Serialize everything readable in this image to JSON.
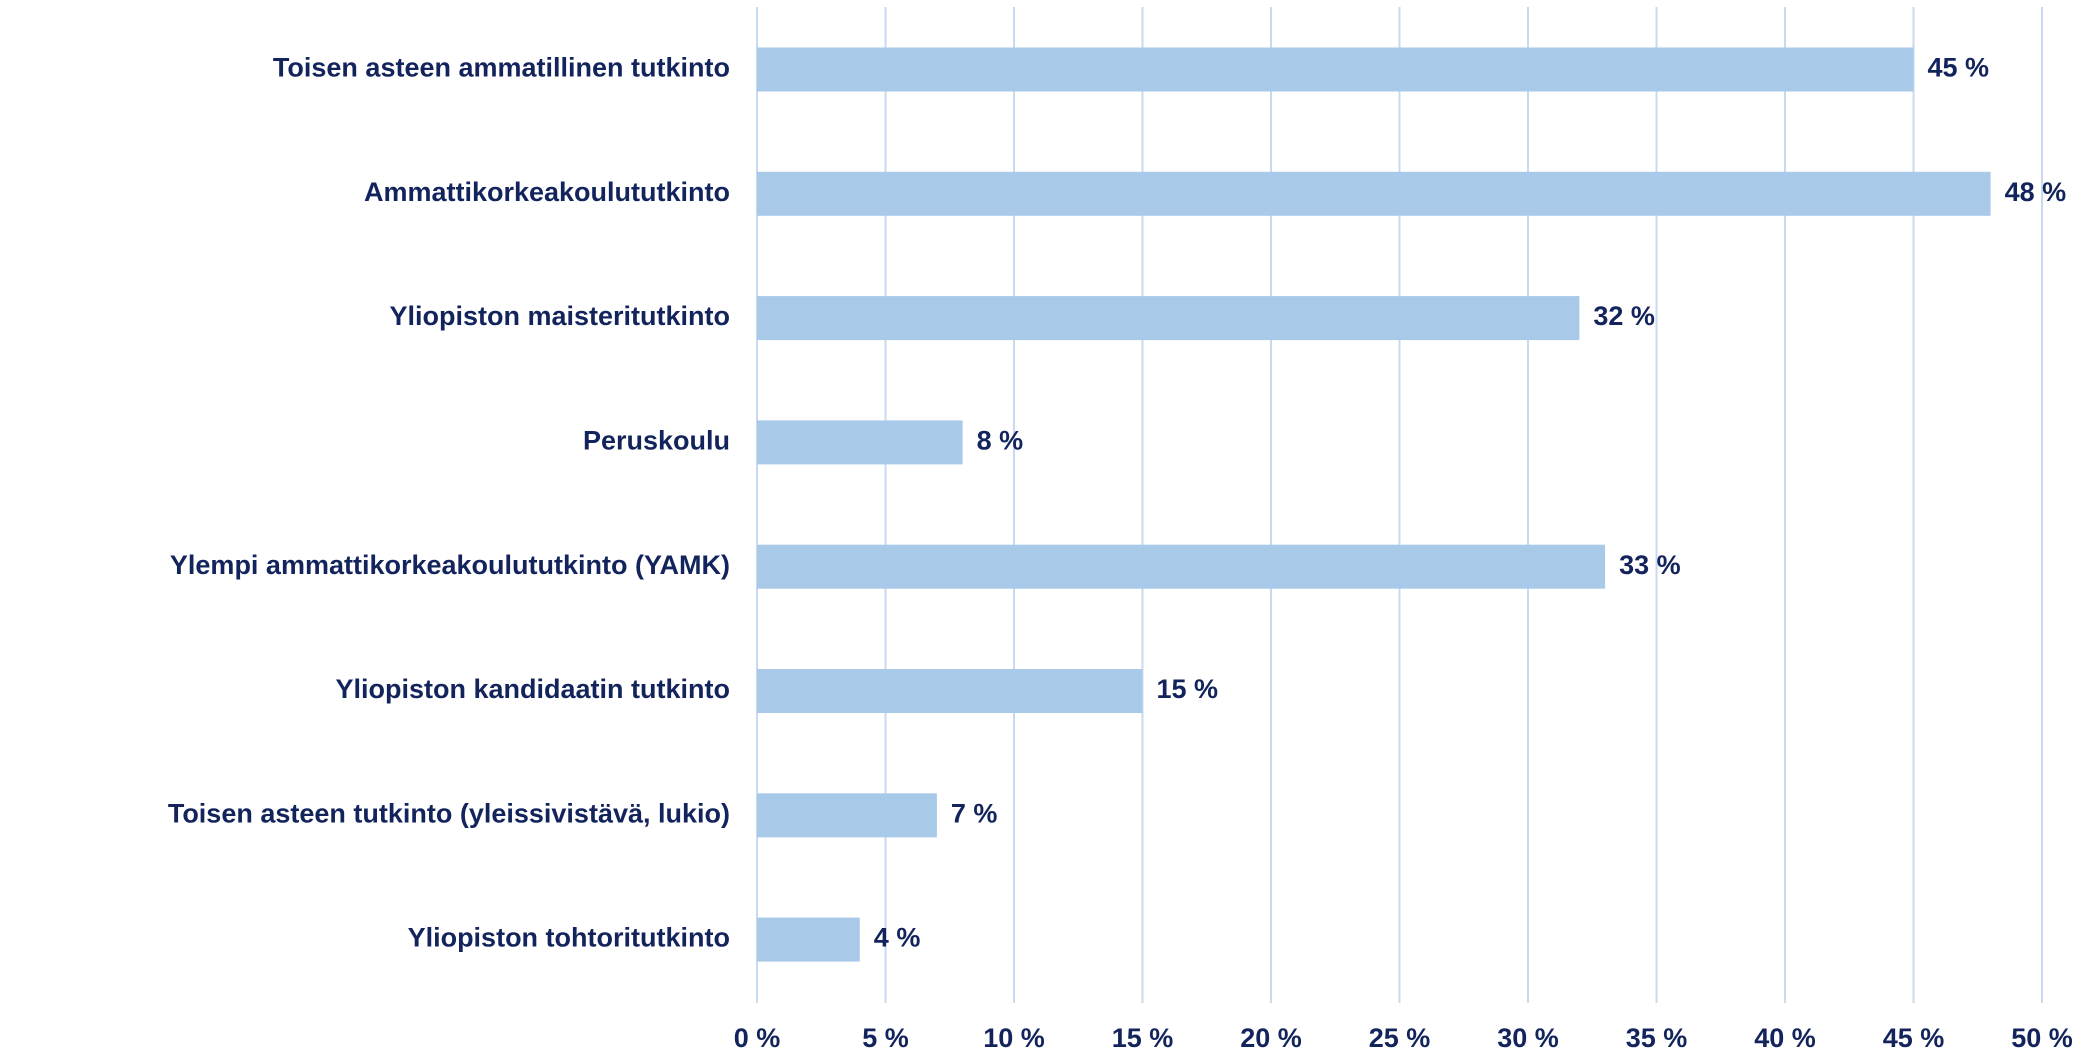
{
  "chart_data": {
    "type": "bar",
    "orientation": "horizontal",
    "categories": [
      "Toisen asteen ammatillinen tutkinto",
      "Ammattikorkeakoulututkinto",
      "Yliopiston maisteritutkinto",
      "Peruskoulu",
      "Ylempi ammattikorkeakoulututkinto (YAMK)",
      "Yliopiston kandidaatin tutkinto",
      "Toisen asteen tutkinto (yleissivistävä, lukio)",
      "Yliopiston tohtoritutkinto"
    ],
    "values": [
      45,
      48,
      32,
      8,
      33,
      15,
      7,
      4
    ],
    "value_labels": [
      "45 %",
      "48 %",
      "32 %",
      "8 %",
      "33 %",
      "15 %",
      "7 %",
      "4 %"
    ],
    "color": "#a8c9e8",
    "xlim": [
      0,
      50
    ],
    "xticks": [
      {
        "value": 0,
        "label": "0 %"
      },
      {
        "value": 5,
        "label": "5 %"
      },
      {
        "value": 10,
        "label": "10 %"
      },
      {
        "value": 15,
        "label": "15 %"
      },
      {
        "value": 20,
        "label": "20 %"
      },
      {
        "value": 25,
        "label": "25 %"
      },
      {
        "value": 30,
        "label": "30 %"
      },
      {
        "value": 35,
        "label": "35 %"
      },
      {
        "value": 40,
        "label": "40 %"
      },
      {
        "value": 45,
        "label": "45 %"
      },
      {
        "value": 50,
        "label": "50 %"
      }
    ],
    "grid": true
  }
}
